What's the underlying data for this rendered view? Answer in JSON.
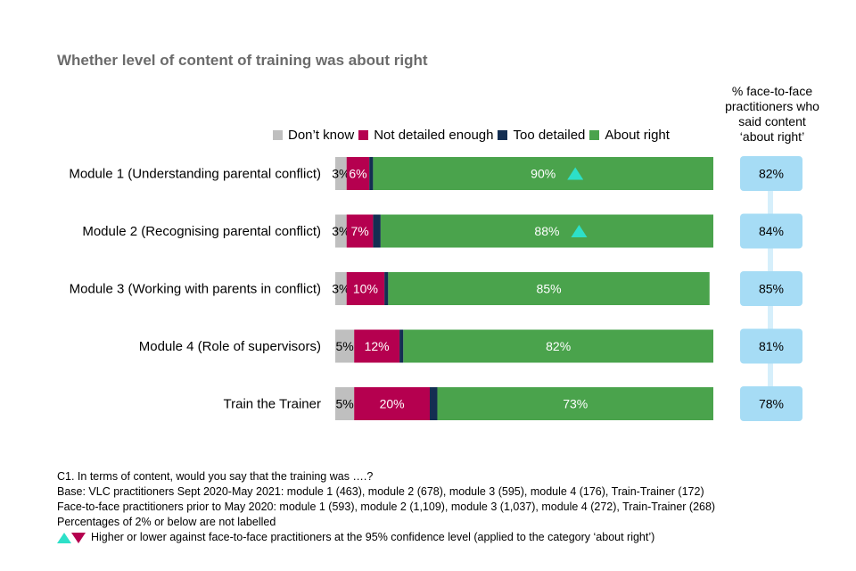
{
  "title": "Whether level of content of training was about right",
  "side_header": [
    "% face-to-face",
    "practitioners who",
    "said content",
    "‘about right’"
  ],
  "legend": [
    {
      "label": "Don’t know",
      "color": "#bfbfbf"
    },
    {
      "label": "Not detailed enough",
      "color": "#b5004f"
    },
    {
      "label": "Too detailed",
      "color": "#142e52"
    },
    {
      "label": "About right",
      "color": "#4aa34c"
    }
  ],
  "colors": {
    "dont_know": "#bfbfbf",
    "not_detailed": "#b5004f",
    "too_detailed": "#142e52",
    "about_right": "#4aa34c",
    "side_box": "#a6dcf5",
    "side_line": "#d6effb",
    "sig_higher": "#2de0c8",
    "sig_lower": "#b5004f"
  },
  "chart_data": {
    "type": "bar",
    "orientation": "horizontal",
    "stacked": true,
    "title": "Whether level of content of training was about right",
    "categories": [
      "Module 1 (Understanding parental conflict)",
      "Module 2 (Recognising parental conflict)",
      "Module 3 (Working with parents in conflict)",
      "Module 4 (Role of supervisors)",
      "Train the Trainer"
    ],
    "series": [
      {
        "name": "Don’t know",
        "values": [
          3,
          3,
          3,
          5,
          5
        ],
        "labels": [
          "3%",
          "3%",
          "3%",
          "5%",
          "5%"
        ]
      },
      {
        "name": "Not detailed enough",
        "values": [
          6,
          7,
          10,
          12,
          20
        ],
        "labels": [
          "6%",
          "7%",
          "10%",
          "12%",
          "20%"
        ]
      },
      {
        "name": "Too detailed",
        "values": [
          1,
          2,
          1,
          1,
          2
        ],
        "labels": [
          "",
          "",
          "",
          "",
          ""
        ]
      },
      {
        "name": "About right",
        "values": [
          90,
          88,
          85,
          82,
          73
        ],
        "labels": [
          "90%",
          "88%",
          "85%",
          "82%",
          "73%"
        ]
      }
    ],
    "significance_about_right": [
      "higher",
      "higher",
      "",
      "",
      ""
    ],
    "face_to_face_about_right": {
      "values": [
        82,
        84,
        85,
        81,
        78
      ],
      "labels": [
        "82%",
        "84%",
        "85%",
        "81%",
        "78%"
      ]
    },
    "xlim": [
      0,
      100
    ]
  },
  "footnotes": {
    "question": "C1. In terms of content, would you say that the training was ….?",
    "base_vlc": "Base: VLC practitioners Sept 2020-May 2021: module 1 (463), module 2 (678), module 3 (595), module 4 (176), Train-Trainer (172)",
    "base_f2f": "Face-to-face practitioners prior to May 2020: module 1 (593), module 2 (1,109), module 3 (1,037), module 4 (272), Train-Trainer (268)",
    "labels_note": "Percentages of 2% or below are not labelled",
    "sig_note": "Higher or lower against face-to-face practitioners at the 95% confidence level (applied to the category ‘about right’)"
  }
}
